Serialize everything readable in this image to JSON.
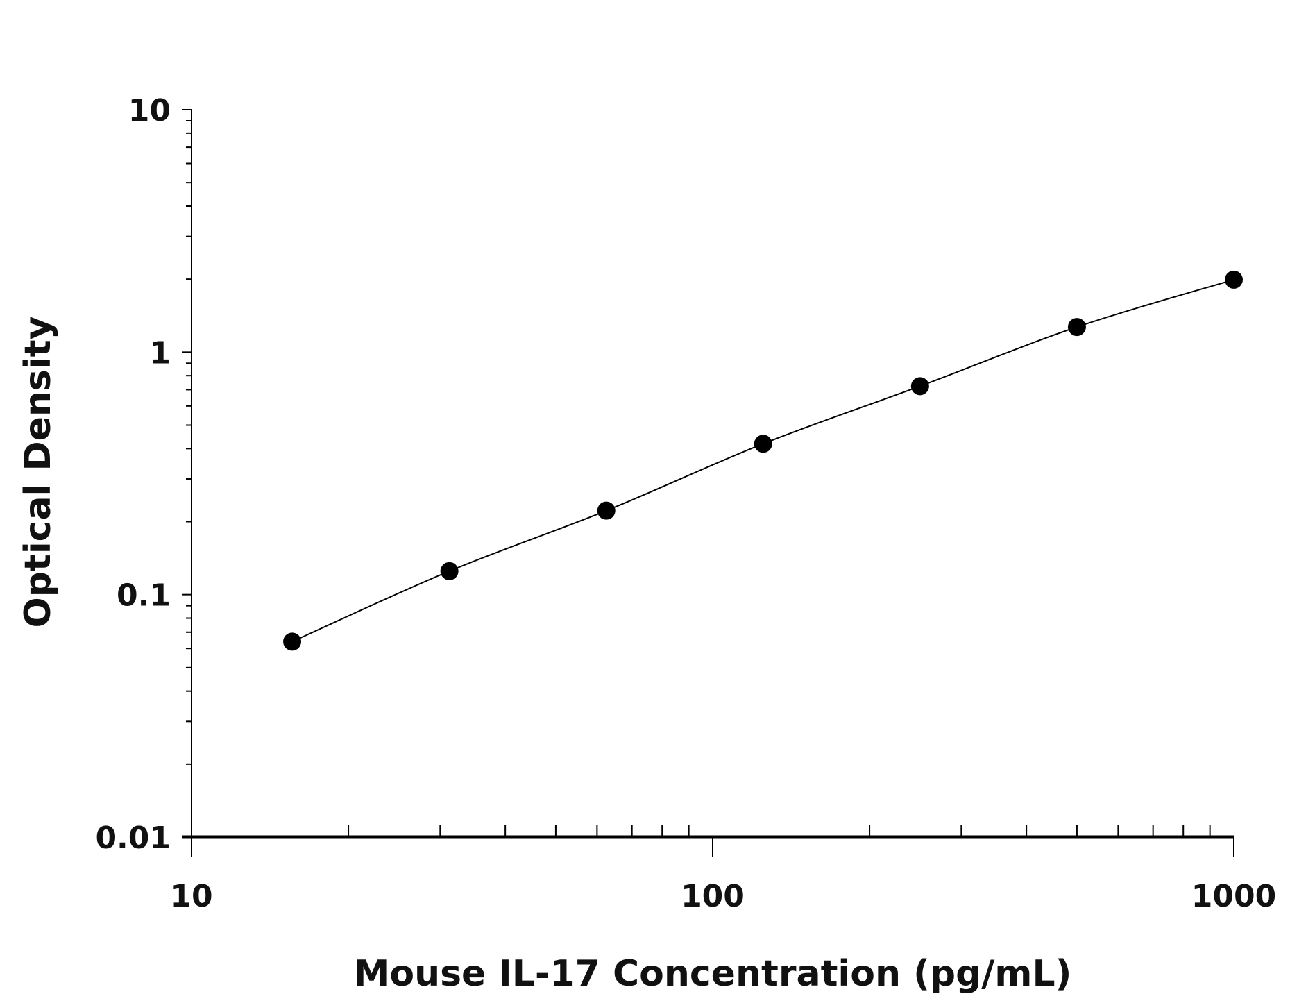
{
  "chart_data": {
    "type": "scatter",
    "title": "",
    "xlabel": "Mouse IL-17 Concentration (pg/mL)",
    "ylabel": "Optical Density",
    "xscale": "log",
    "yscale": "log",
    "xlim": [
      10,
      1000
    ],
    "ylim": [
      0.01,
      10
    ],
    "xticks": [
      10,
      100,
      1000
    ],
    "xtick_labels": [
      "10",
      "100",
      "1000"
    ],
    "yticks": [
      0.01,
      0.1,
      1,
      10
    ],
    "ytick_labels": [
      "0.01",
      "0.1",
      "1",
      "10"
    ],
    "grid": false,
    "legend": "none",
    "fit_curve": true,
    "marker_color": "#000000",
    "line_color": "#000000",
    "x": [
      15.6,
      31.25,
      62.5,
      125,
      250,
      500,
      1000
    ],
    "y": [
      0.064,
      0.125,
      0.222,
      0.419,
      0.724,
      1.27,
      1.99
    ]
  }
}
